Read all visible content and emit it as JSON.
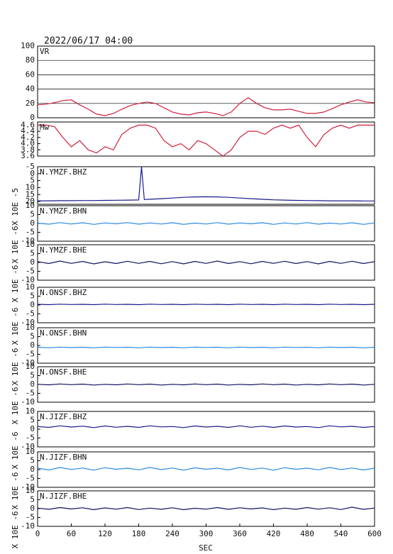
{
  "title": "2022/06/17 04:00",
  "x_axis": {
    "xlim": [
      0,
      600
    ],
    "xticks": [
      0,
      60,
      120,
      180,
      240,
      300,
      360,
      420,
      480,
      540,
      600
    ],
    "xlabel": "SEC"
  },
  "chart_data": [
    {
      "type": "line",
      "label": "VR",
      "color": "#d0203c",
      "grid": true,
      "ylim": [
        0,
        100
      ],
      "yticks": [
        0,
        20,
        40,
        60,
        80,
        100
      ],
      "x": [
        0,
        15,
        30,
        45,
        60,
        75,
        90,
        105,
        120,
        135,
        150,
        165,
        180,
        195,
        210,
        225,
        240,
        255,
        270,
        285,
        300,
        315,
        330,
        345,
        360,
        375,
        390,
        405,
        420,
        435,
        450,
        465,
        480,
        495,
        510,
        525,
        540,
        555,
        570,
        585,
        600
      ],
      "values": [
        18,
        19,
        21,
        24,
        25,
        18,
        12,
        5,
        3,
        6,
        12,
        17,
        20,
        22,
        20,
        14,
        8,
        5,
        4,
        7,
        8,
        6,
        3,
        8,
        20,
        28,
        20,
        14,
        11,
        11,
        12,
        9,
        6,
        6,
        8,
        13,
        18,
        22,
        25,
        22,
        21
      ]
    },
    {
      "type": "line",
      "label": "Mw",
      "color": "#d0203c",
      "ylim": [
        3.6,
        4.7
      ],
      "yticks": [
        3.6,
        3.8,
        {
          "value": 4,
          "label": "4.0"
        },
        4.2,
        4.4,
        4.6
      ],
      "x": [
        0,
        15,
        30,
        45,
        60,
        75,
        90,
        105,
        120,
        135,
        150,
        165,
        180,
        195,
        210,
        225,
        240,
        255,
        270,
        285,
        300,
        315,
        330,
        345,
        360,
        375,
        390,
        405,
        420,
        435,
        450,
        465,
        480,
        495,
        510,
        525,
        540,
        555,
        570,
        585,
        600
      ],
      "values": [
        4.6,
        4.6,
        4.55,
        4.2,
        3.9,
        4.1,
        3.8,
        3.7,
        3.9,
        3.8,
        4.3,
        4.5,
        4.6,
        4.6,
        4.5,
        4.1,
        3.9,
        4.0,
        3.8,
        4.1,
        4.0,
        3.8,
        3.6,
        3.8,
        4.2,
        4.4,
        4.4,
        4.3,
        4.5,
        4.6,
        4.5,
        4.6,
        4.2,
        3.9,
        4.3,
        4.5,
        4.6,
        4.5,
        4.6,
        4.6,
        4.6
      ]
    },
    {
      "type": "line",
      "label": "N.YMZF.BHZ",
      "ylabel": "X 10E -5",
      "color": "#1a1a8c",
      "ylim": [
        22,
        -5
      ],
      "yticks": [
        -5,
        0,
        5,
        10,
        15,
        20
      ],
      "x": [
        0,
        20,
        40,
        60,
        80,
        100,
        120,
        140,
        160,
        180,
        185,
        190,
        200,
        220,
        240,
        260,
        280,
        300,
        320,
        340,
        360,
        380,
        400,
        420,
        440,
        460,
        480,
        500,
        520,
        540,
        560,
        580,
        600
      ],
      "values": [
        19.5,
        19.5,
        19.4,
        19.4,
        19.3,
        19.3,
        19.2,
        19.1,
        19.0,
        18.9,
        -5,
        18.6,
        18.4,
        18.0,
        17.5,
        17.0,
        16.7,
        16.6,
        16.7,
        17.0,
        17.5,
        18.0,
        18.4,
        18.8,
        19.0,
        19.2,
        19.3,
        19.4,
        19.5,
        19.5,
        19.5,
        19.6,
        19.6
      ]
    },
    {
      "type": "line",
      "label": "N.YMZF.BHN",
      "ylabel": "X 10E -6",
      "color": "#2a8ae0",
      "ylim": [
        -10,
        10
      ],
      "yticks": [
        -10,
        -5,
        0,
        5,
        10
      ],
      "x": [
        0,
        20,
        40,
        60,
        80,
        100,
        120,
        140,
        160,
        180,
        200,
        220,
        240,
        260,
        280,
        300,
        320,
        340,
        360,
        380,
        400,
        420,
        440,
        460,
        480,
        500,
        520,
        540,
        560,
        580,
        600
      ],
      "values": [
        0.2,
        -0.4,
        0.5,
        -0.3,
        0.4,
        -0.5,
        0.3,
        -0.2,
        0.5,
        -0.4,
        0.3,
        -0.3,
        0.4,
        -0.5,
        0.2,
        -0.3,
        0.5,
        -0.4,
        0.3,
        -0.2,
        0.4,
        -0.5,
        0.3,
        -0.3,
        0.5,
        -0.4,
        0.2,
        -0.3,
        0.4,
        -0.5,
        0.3
      ]
    },
    {
      "type": "line",
      "label": "N.YMZF.BHE",
      "ylabel": "X 10E -6",
      "color": "#101060",
      "ylim": [
        -10,
        10
      ],
      "yticks": [
        -10,
        -5,
        0,
        5,
        10
      ],
      "x": [
        0,
        20,
        40,
        60,
        80,
        100,
        120,
        140,
        160,
        180,
        200,
        220,
        240,
        260,
        280,
        300,
        320,
        340,
        360,
        380,
        400,
        420,
        440,
        460,
        480,
        500,
        520,
        540,
        560,
        580,
        600
      ],
      "values": [
        0.5,
        -0.6,
        0.8,
        -0.5,
        0.6,
        -0.8,
        0.4,
        -0.6,
        0.7,
        -0.5,
        0.6,
        -0.7,
        0.5,
        -0.8,
        0.6,
        -0.5,
        0.8,
        -0.6,
        0.5,
        -0.7,
        0.6,
        -0.5,
        0.7,
        -0.6,
        0.5,
        -0.8,
        0.6,
        -0.5,
        0.7,
        -0.6,
        0.5
      ]
    },
    {
      "type": "line",
      "label": "N.ONSF.BHZ",
      "ylabel": "X 10E -6",
      "color": "#1a1a8c",
      "ylim": [
        -10,
        10
      ],
      "yticks": [
        -10,
        -5,
        0,
        5,
        10
      ],
      "x": [
        0,
        20,
        40,
        60,
        80,
        100,
        120,
        140,
        160,
        180,
        200,
        220,
        240,
        260,
        280,
        300,
        320,
        340,
        360,
        380,
        400,
        420,
        440,
        460,
        480,
        500,
        520,
        540,
        560,
        580,
        600
      ],
      "values": [
        0.4,
        0.2,
        0.5,
        0.3,
        0.4,
        0.2,
        0.5,
        0.3,
        0.4,
        0.2,
        0.5,
        0.3,
        0.4,
        0.2,
        0.5,
        0.3,
        0.4,
        0.2,
        0.5,
        0.3,
        0.4,
        0.2,
        0.5,
        0.3,
        0.4,
        0.2,
        0.5,
        0.3,
        0.4,
        0.2,
        0.4
      ]
    },
    {
      "type": "line",
      "label": "N.ONSF.BHN",
      "ylabel": "X 10E -6",
      "color": "#2a8ae0",
      "ylim": [
        -10,
        10
      ],
      "yticks": [
        -10,
        -5,
        0,
        5,
        10
      ],
      "x": [
        0,
        20,
        40,
        60,
        80,
        100,
        120,
        140,
        160,
        180,
        200,
        220,
        240,
        260,
        280,
        300,
        320,
        340,
        360,
        380,
        400,
        420,
        440,
        460,
        480,
        500,
        520,
        540,
        560,
        580,
        600
      ],
      "values": [
        -1.0,
        -1.3,
        -0.9,
        -1.2,
        -1.0,
        -1.3,
        -0.9,
        -1.1,
        -1.0,
        -1.3,
        -0.9,
        -1.2,
        -1.0,
        -1.3,
        -0.9,
        -1.1,
        -1.0,
        -1.3,
        -0.9,
        -1.2,
        -1.0,
        -1.3,
        -0.9,
        -1.1,
        -1.0,
        -1.3,
        -0.9,
        -1.2,
        -1.0,
        -1.3,
        -1.0
      ]
    },
    {
      "type": "line",
      "label": "N.ONSF.BHE",
      "ylabel": "X 10E -6",
      "color": "#101060",
      "ylim": [
        -10,
        10
      ],
      "yticks": [
        -10,
        -5,
        0,
        5,
        10
      ],
      "x": [
        0,
        20,
        40,
        60,
        80,
        100,
        120,
        140,
        160,
        180,
        200,
        220,
        240,
        260,
        280,
        300,
        320,
        340,
        360,
        380,
        400,
        420,
        440,
        460,
        480,
        500,
        520,
        540,
        560,
        580,
        600
      ],
      "values": [
        0.1,
        -0.2,
        0.3,
        -0.1,
        0.2,
        -0.3,
        0.1,
        -0.2,
        0.3,
        -0.1,
        0.2,
        -0.3,
        0.1,
        -0.2,
        0.3,
        -0.1,
        0.2,
        -0.3,
        0.1,
        -0.2,
        0.3,
        -0.1,
        0.2,
        -0.3,
        0.1,
        -0.2,
        0.3,
        -0.1,
        0.2,
        -0.3,
        0.1
      ]
    },
    {
      "type": "line",
      "label": "N.JIZF.BHZ",
      "ylabel": "X 10E -6",
      "color": "#1a1a8c",
      "ylim": [
        -10,
        10
      ],
      "yticks": [
        -10,
        -5,
        0,
        5,
        10
      ],
      "x": [
        0,
        20,
        40,
        60,
        80,
        100,
        120,
        140,
        160,
        180,
        200,
        220,
        240,
        260,
        280,
        300,
        320,
        340,
        360,
        380,
        400,
        420,
        440,
        460,
        480,
        500,
        520,
        540,
        560,
        580,
        600
      ],
      "values": [
        1.5,
        1.0,
        1.9,
        1.2,
        1.7,
        0.9,
        1.8,
        1.1,
        1.6,
        1.0,
        1.9,
        1.3,
        1.5,
        0.9,
        1.8,
        1.2,
        1.6,
        1.0,
        1.9,
        1.1,
        1.7,
        1.0,
        1.8,
        1.2,
        1.5,
        0.9,
        1.9,
        1.3,
        1.6,
        1.0,
        1.5
      ]
    },
    {
      "type": "line",
      "label": "N.JIZF.BHN",
      "ylabel": "X 10E -6",
      "color": "#2a8ae0",
      "ylim": [
        -10,
        10
      ],
      "yticks": [
        -10,
        -5,
        0,
        5,
        10
      ],
      "x": [
        0,
        20,
        40,
        60,
        80,
        100,
        120,
        140,
        160,
        180,
        200,
        220,
        240,
        260,
        280,
        300,
        320,
        340,
        360,
        380,
        400,
        420,
        440,
        460,
        480,
        500,
        520,
        540,
        560,
        580,
        600
      ],
      "values": [
        0.8,
        -0.2,
        1.2,
        0.1,
        0.9,
        -0.3,
        1.1,
        0.2,
        0.8,
        -0.1,
        1.2,
        0.0,
        0.9,
        -0.3,
        1.0,
        0.2,
        0.8,
        -0.2,
        1.2,
        0.1,
        0.9,
        -0.3,
        1.1,
        0.2,
        0.8,
        -0.1,
        1.2,
        0.0,
        0.9,
        -0.2,
        0.8
      ]
    },
    {
      "type": "line",
      "label": "N.JIZF.BHE",
      "ylabel": "X 10E -6",
      "color": "#101060",
      "ylim": [
        -10,
        10
      ],
      "yticks": [
        -10,
        -5,
        0,
        5,
        10
      ],
      "x": [
        0,
        20,
        40,
        60,
        80,
        100,
        120,
        140,
        160,
        180,
        200,
        220,
        240,
        260,
        280,
        300,
        320,
        340,
        360,
        380,
        400,
        420,
        440,
        460,
        480,
        500,
        520,
        540,
        560,
        580,
        600
      ],
      "values": [
        0.3,
        -0.4,
        0.6,
        -0.2,
        0.5,
        -0.6,
        0.4,
        -0.3,
        0.6,
        -0.5,
        0.3,
        -0.4,
        0.5,
        -0.6,
        0.2,
        -0.3,
        0.6,
        -0.4,
        0.5,
        -0.2,
        0.4,
        -0.6,
        0.3,
        -0.4,
        0.6,
        -0.3,
        0.5,
        -0.5,
        0.8,
        -0.4,
        0.3
      ]
    }
  ]
}
